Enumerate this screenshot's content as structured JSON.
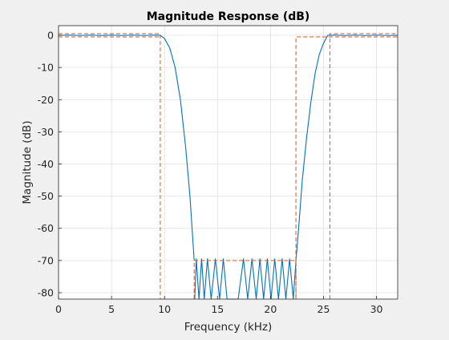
{
  "chart_data": {
    "type": "line",
    "title": "Magnitude Response (dB)",
    "xlabel": "Frequency (kHz)",
    "ylabel": "Magnitude (dB)",
    "xlim": [
      0,
      32
    ],
    "ylim": [
      -82,
      3
    ],
    "x_ticks": [
      0,
      5,
      10,
      15,
      20,
      25,
      30
    ],
    "y_ticks": [
      0,
      -10,
      -20,
      -30,
      -40,
      -50,
      -60,
      -70,
      -80
    ],
    "grid": true,
    "colors": {
      "response": "#0072bd",
      "mask": "#d95319",
      "grid": "#dfdfdf",
      "axes": "#262626"
    },
    "series": [
      {
        "role": "response",
        "x": [
          0,
          1,
          2,
          3,
          4,
          5,
          6,
          7,
          8,
          9,
          9.6,
          10,
          10.5,
          11,
          11.5,
          12,
          12.4,
          12.8
        ],
        "y": [
          0,
          0.05,
          -0.05,
          0.05,
          -0.05,
          0.05,
          -0.05,
          0.05,
          -0.05,
          0.05,
          0,
          -1,
          -4,
          -10,
          -20,
          -35,
          -50,
          -70
        ]
      },
      {
        "role": "stopband_lobes",
        "x": [
          12.85,
          13.0,
          13.25,
          13.5,
          13.75,
          14.05,
          14.4,
          14.8,
          15.2,
          15.55,
          15.9,
          16.35,
          16.95,
          17.45,
          17.85,
          18.25,
          18.65,
          19.0,
          19.35,
          19.7,
          20.05,
          20.4,
          20.75,
          21.1,
          21.45,
          21.8,
          22.15,
          22.4
        ],
        "y": [
          -82,
          -69.5,
          -82,
          -69.5,
          -82,
          -69.5,
          -82,
          -69.5,
          -82,
          -69.5,
          -82,
          -82,
          -82,
          -69.5,
          -82,
          -69.5,
          -82,
          -69.5,
          -82,
          -69.5,
          -82,
          -69.5,
          -82,
          -69.5,
          -82,
          -69.5,
          -82,
          -70
        ]
      },
      {
        "role": "response",
        "x": [
          22.4,
          22.7,
          23.0,
          23.4,
          23.8,
          24.2,
          24.6,
          25.0,
          25.4,
          26,
          27,
          28,
          29,
          30,
          31,
          32
        ],
        "y": [
          -70,
          -58,
          -45,
          -32,
          -21,
          -12,
          -6,
          -2.5,
          0,
          0.05,
          -0.05,
          0.05,
          -0.05,
          0.05,
          -0.05,
          0
        ]
      }
    ],
    "mask_lines": [
      {
        "x": [
          0,
          9.6,
          9.6
        ],
        "y": [
          0.5,
          0.5,
          -82
        ]
      },
      {
        "x": [
          0,
          9.6
        ],
        "y": [
          -0.5,
          -0.5
        ]
      },
      {
        "x": [
          12.8,
          12.8,
          22.4,
          22.4
        ],
        "y": [
          -82,
          -70,
          -70,
          -82
        ]
      },
      {
        "x": [
          22.4,
          22.4,
          32
        ],
        "y": [
          -82,
          -0.5,
          -0.5
        ]
      },
      {
        "x": [
          25.6,
          25.6,
          32
        ],
        "y": [
          -82,
          0.5,
          0.5
        ]
      }
    ]
  }
}
